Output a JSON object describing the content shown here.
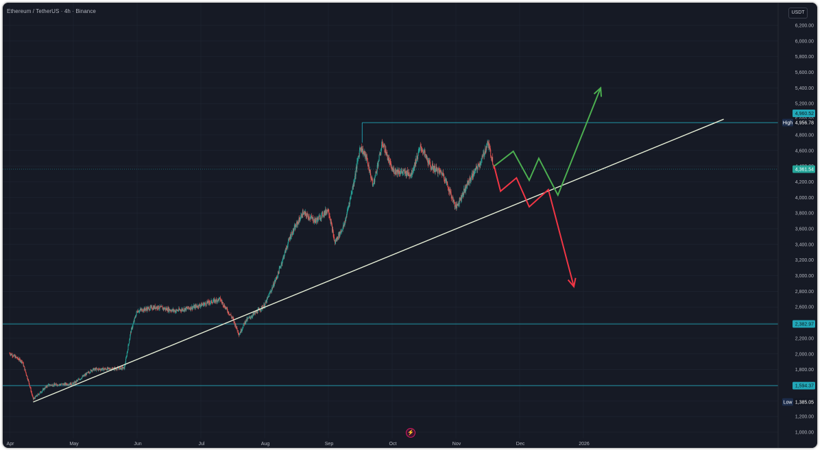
{
  "header": {
    "symbol": "Ethereum / TetherUS · 4h · Binance",
    "currency": "USDT"
  },
  "colors": {
    "background": "#161a25",
    "grid": "#1f2431",
    "up": "#26a69a",
    "down": "#ef5350",
    "level_line": "#22a7b8",
    "trendline": "#e8f0d8",
    "bull_arrow": "#4caf50",
    "bear_arrow": "#f23645"
  },
  "chart_data": {
    "type": "candlestick",
    "x_labels": [
      "Apr",
      "May",
      "Jun",
      "Jul",
      "Aug",
      "Sep",
      "Oct",
      "Nov",
      "Dec",
      "2026"
    ],
    "y_ticks": [
      "1,000.00",
      "1,200.00",
      "1,400.00",
      "1,600.00",
      "1,800.00",
      "2,000.00",
      "2,200.00",
      "2,400.00",
      "2,600.00",
      "2,800.00",
      "3,000.00",
      "3,200.00",
      "3,400.00",
      "3,600.00",
      "3,800.00",
      "4,000.00",
      "4,200.00",
      "4,400.00",
      "4,600.00",
      "4,800.00",
      "5,000.00",
      "5,200.00",
      "5,400.00",
      "5,600.00",
      "5,800.00",
      "6,000.00",
      "6,200.00"
    ],
    "y_tick_values": [
      1000,
      1200,
      1400,
      1600,
      1800,
      2000,
      2200,
      2400,
      2600,
      2800,
      3000,
      3200,
      3400,
      3600,
      3800,
      4000,
      4200,
      4400,
      4600,
      4800,
      5000,
      5200,
      5400,
      5600,
      5800,
      6000,
      6200
    ],
    "ylim": [
      900,
      6300
    ],
    "price_path": [
      {
        "x": 0.0,
        "y": 2010
      },
      {
        "x": 0.2,
        "y": 1900
      },
      {
        "x": 0.3,
        "y": 1640
      },
      {
        "x": 0.37,
        "y": 1420
      },
      {
        "x": 0.6,
        "y": 1600
      },
      {
        "x": 1.0,
        "y": 1620
      },
      {
        "x": 1.3,
        "y": 1800
      },
      {
        "x": 1.6,
        "y": 1810
      },
      {
        "x": 1.8,
        "y": 1820
      },
      {
        "x": 1.9,
        "y": 2280
      },
      {
        "x": 2.0,
        "y": 2550
      },
      {
        "x": 2.3,
        "y": 2600
      },
      {
        "x": 2.6,
        "y": 2550
      },
      {
        "x": 2.9,
        "y": 2600
      },
      {
        "x": 3.3,
        "y": 2700
      },
      {
        "x": 3.5,
        "y": 2450
      },
      {
        "x": 3.6,
        "y": 2250
      },
      {
        "x": 3.7,
        "y": 2420
      },
      {
        "x": 4.0,
        "y": 2620
      },
      {
        "x": 4.2,
        "y": 3000
      },
      {
        "x": 4.4,
        "y": 3500
      },
      {
        "x": 4.6,
        "y": 3800
      },
      {
        "x": 4.8,
        "y": 3700
      },
      {
        "x": 5.0,
        "y": 3850
      },
      {
        "x": 5.1,
        "y": 3420
      },
      {
        "x": 5.25,
        "y": 3650
      },
      {
        "x": 5.4,
        "y": 4200
      },
      {
        "x": 5.5,
        "y": 4650
      },
      {
        "x": 5.6,
        "y": 4500
      },
      {
        "x": 5.7,
        "y": 4150
      },
      {
        "x": 5.85,
        "y": 4700
      },
      {
        "x": 6.0,
        "y": 4350
      },
      {
        "x": 6.3,
        "y": 4300
      },
      {
        "x": 6.45,
        "y": 4650
      },
      {
        "x": 6.6,
        "y": 4400
      },
      {
        "x": 6.8,
        "y": 4300
      },
      {
        "x": 7.0,
        "y": 3870
      },
      {
        "x": 7.2,
        "y": 4200
      },
      {
        "x": 7.4,
        "y": 4470
      },
      {
        "x": 7.5,
        "y": 4700
      },
      {
        "x": 7.6,
        "y": 4400
      }
    ],
    "trendline": [
      {
        "x": 0.37,
        "y": 1385
      },
      {
        "x": 11.2,
        "y": 5000
      }
    ],
    "high_level": {
      "start_x": 5.53,
      "y": 4956.78,
      "label": "High",
      "value": "4,956.78",
      "above_value": "4,960.52"
    },
    "current_price": {
      "y": 4361.54,
      "value": "4,361.54"
    },
    "levels": [
      {
        "y": 2382.97,
        "value": "2,382.97"
      },
      {
        "y": 1594.37,
        "value": "1,594.37"
      }
    ],
    "low_level": {
      "y": 1385.05,
      "label": "Low",
      "value": "1,385.05"
    },
    "bull_path": [
      {
        "x": 7.6,
        "y": 4400
      },
      {
        "x": 7.9,
        "y": 4590
      },
      {
        "x": 8.15,
        "y": 4220
      },
      {
        "x": 8.3,
        "y": 4500
      },
      {
        "x": 8.6,
        "y": 4030
      },
      {
        "x": 9.27,
        "y": 5400
      }
    ],
    "bear_path": [
      {
        "x": 7.6,
        "y": 4400
      },
      {
        "x": 7.7,
        "y": 4080
      },
      {
        "x": 7.95,
        "y": 4250
      },
      {
        "x": 8.15,
        "y": 3880
      },
      {
        "x": 8.45,
        "y": 4100
      },
      {
        "x": 8.85,
        "y": 2860
      }
    ]
  }
}
